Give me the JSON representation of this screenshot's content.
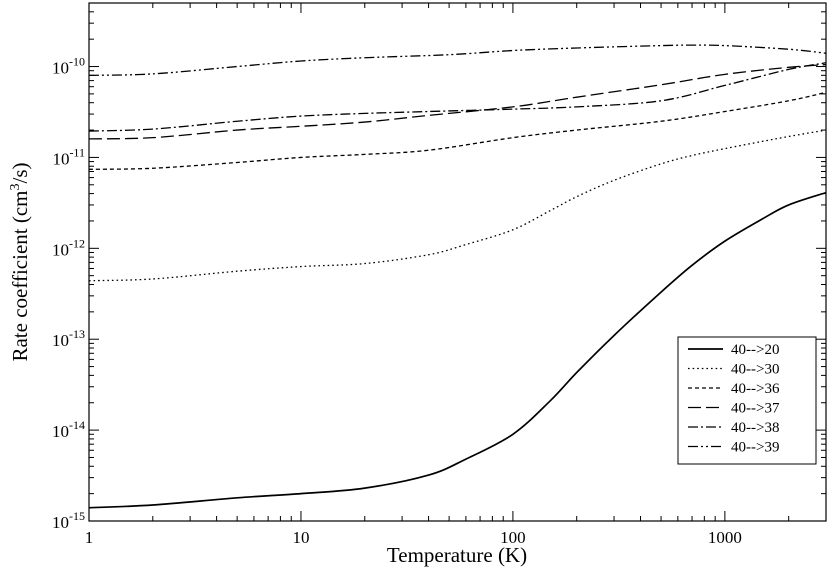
{
  "chart_data": {
    "type": "line",
    "xlabel": "Temperature (K)",
    "ylabel": {
      "before": "Rate coefficient (cm",
      "superscript": "3",
      "after": "/s)"
    },
    "x_scale": "log",
    "y_scale": "log",
    "xlim": [
      1,
      3000
    ],
    "ylim": [
      1e-15,
      5e-10
    ],
    "x_ticks": [
      {
        "value": 1,
        "label": "1"
      },
      {
        "value": 10,
        "label": "10"
      },
      {
        "value": 100,
        "label": "100"
      },
      {
        "value": 1000,
        "label": "1000"
      }
    ],
    "y_ticks": [
      {
        "value": 1e-15,
        "base": "10",
        "exp": "-15"
      },
      {
        "value": 1e-14,
        "base": "10",
        "exp": "-14"
      },
      {
        "value": 1e-13,
        "base": "10",
        "exp": "-13"
      },
      {
        "value": 1e-12,
        "base": "10",
        "exp": "-12"
      },
      {
        "value": 1e-11,
        "base": "10",
        "exp": "-11"
      },
      {
        "value": 1e-10,
        "base": "10",
        "exp": "-10"
      }
    ],
    "grid": false,
    "legend_position": "bottom-right",
    "series": [
      {
        "name": "40-->20",
        "dash": "solid",
        "points": [
          [
            1,
            1.4e-15
          ],
          [
            2,
            1.5e-15
          ],
          [
            5,
            1.8e-15
          ],
          [
            10,
            2e-15
          ],
          [
            20,
            2.3e-15
          ],
          [
            40,
            3.2e-15
          ],
          [
            60,
            4.8e-15
          ],
          [
            100,
            9e-15
          ],
          [
            150,
            2.1e-14
          ],
          [
            200,
            4.3e-14
          ],
          [
            300,
            1.1e-13
          ],
          [
            500,
            3.3e-13
          ],
          [
            700,
            6.5e-13
          ],
          [
            1000,
            1.2e-12
          ],
          [
            1500,
            2.1e-12
          ],
          [
            2000,
            3e-12
          ],
          [
            3000,
            4.1e-12
          ]
        ]
      },
      {
        "name": "40-->30",
        "dash": "dotted",
        "points": [
          [
            1,
            4.4e-13
          ],
          [
            2,
            4.6e-13
          ],
          [
            5,
            5.6e-13
          ],
          [
            10,
            6.3e-13
          ],
          [
            20,
            6.8e-13
          ],
          [
            40,
            8.5e-13
          ],
          [
            60,
            1.1e-12
          ],
          [
            100,
            1.6e-12
          ],
          [
            150,
            2.6e-12
          ],
          [
            200,
            3.7e-12
          ],
          [
            300,
            5.6e-12
          ],
          [
            500,
            8.5e-12
          ],
          [
            700,
            1.05e-11
          ],
          [
            1000,
            1.25e-11
          ],
          [
            1500,
            1.5e-11
          ],
          [
            2000,
            1.7e-11
          ],
          [
            3000,
            2e-11
          ]
        ]
      },
      {
        "name": "40-->36",
        "dash": "short-dash",
        "points": [
          [
            1,
            7.4e-12
          ],
          [
            2,
            7.6e-12
          ],
          [
            5,
            8.8e-12
          ],
          [
            10,
            1e-11
          ],
          [
            20,
            1.08e-11
          ],
          [
            40,
            1.2e-11
          ],
          [
            100,
            1.65e-11
          ],
          [
            200,
            2e-11
          ],
          [
            500,
            2.5e-11
          ],
          [
            1000,
            3.2e-11
          ],
          [
            2000,
            4.2e-11
          ],
          [
            3000,
            5.2e-11
          ]
        ]
      },
      {
        "name": "40-->37",
        "dash": "long-dash",
        "points": [
          [
            1,
            1.6e-11
          ],
          [
            2,
            1.65e-11
          ],
          [
            5,
            2e-11
          ],
          [
            10,
            2.2e-11
          ],
          [
            20,
            2.45e-11
          ],
          [
            40,
            2.9e-11
          ],
          [
            100,
            3.6e-11
          ],
          [
            200,
            4.6e-11
          ],
          [
            500,
            6.3e-11
          ],
          [
            1000,
            8.2e-11
          ],
          [
            2000,
            9.8e-11
          ],
          [
            3000,
            1.05e-10
          ]
        ]
      },
      {
        "name": "40-->38",
        "dash": "dash-dot",
        "points": [
          [
            1,
            1.95e-11
          ],
          [
            2,
            2.05e-11
          ],
          [
            5,
            2.5e-11
          ],
          [
            10,
            2.85e-11
          ],
          [
            20,
            3.05e-11
          ],
          [
            40,
            3.2e-11
          ],
          [
            100,
            3.4e-11
          ],
          [
            200,
            3.6e-11
          ],
          [
            500,
            4.2e-11
          ],
          [
            1000,
            6.2e-11
          ],
          [
            2000,
            9.3e-11
          ],
          [
            3000,
            1.1e-10
          ]
        ]
      },
      {
        "name": "40-->39",
        "dash": "dash-dot-dot",
        "points": [
          [
            1,
            8e-11
          ],
          [
            2,
            8.3e-11
          ],
          [
            5,
            1e-10
          ],
          [
            10,
            1.15e-10
          ],
          [
            20,
            1.25e-10
          ],
          [
            50,
            1.35e-10
          ],
          [
            100,
            1.5e-10
          ],
          [
            200,
            1.6e-10
          ],
          [
            500,
            1.7e-10
          ],
          [
            700,
            1.72e-10
          ],
          [
            1000,
            1.7e-10
          ],
          [
            2000,
            1.55e-10
          ],
          [
            3000,
            1.4e-10
          ]
        ]
      }
    ]
  }
}
